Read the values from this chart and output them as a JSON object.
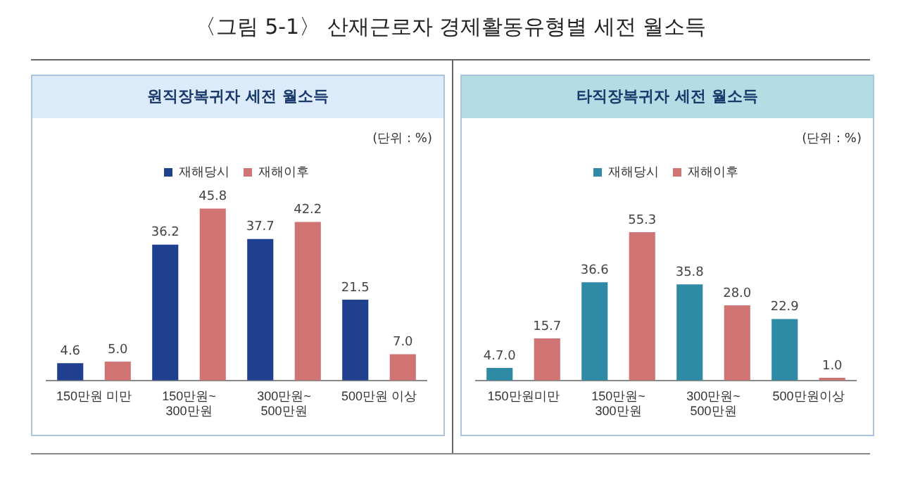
{
  "chart_data": [
    {
      "type": "bar",
      "title": "원직장복귀자 세전 월소득",
      "annotations": [
        "〈그림 5-1〉 산재근로자 경제활동유형별 세전 월소득",
        "(단위 : %)"
      ],
      "categories": [
        "150만원 미만",
        "150만원~\n300만원",
        "300만원~\n500만원",
        "500만원 이상"
      ],
      "series": [
        {
          "name": "재해당시",
          "color": "#1f3f8f",
          "values": [
            4.6,
            36.2,
            37.7,
            21.5
          ],
          "value_labels": [
            "4.6",
            "36.2",
            "37.7",
            "21.5"
          ]
        },
        {
          "name": "재해이후",
          "color": "#cf7472",
          "values": [
            5.0,
            45.8,
            42.2,
            7.0
          ],
          "value_labels": [
            "5.0",
            "45.8",
            "42.2",
            "7.0"
          ]
        }
      ],
      "legend": "top",
      "grid": false,
      "tick_labels": "x"
    },
    {
      "type": "bar",
      "title": "타직장복귀자 세전 월소득",
      "annotations": [
        "(단위 : %)"
      ],
      "categories": [
        "150만원미만",
        "150만원~\n300만원",
        "300만원~\n500만원",
        "500만원이상"
      ],
      "series": [
        {
          "name": "재해당시",
          "color": "#2e8aa5",
          "values": [
            4.7,
            36.6,
            35.8,
            22.9
          ],
          "value_labels": [
            "4.7.0",
            "36.6",
            "35.8",
            "22.9"
          ]
        },
        {
          "name": "재해이후",
          "color": "#cf7472",
          "values": [
            15.7,
            55.3,
            28.0,
            1.0
          ],
          "value_labels": [
            "15.7",
            "55.3",
            "28.0",
            "1.0"
          ]
        }
      ],
      "legend": "top",
      "grid": false,
      "tick_labels": "x"
    }
  ]
}
